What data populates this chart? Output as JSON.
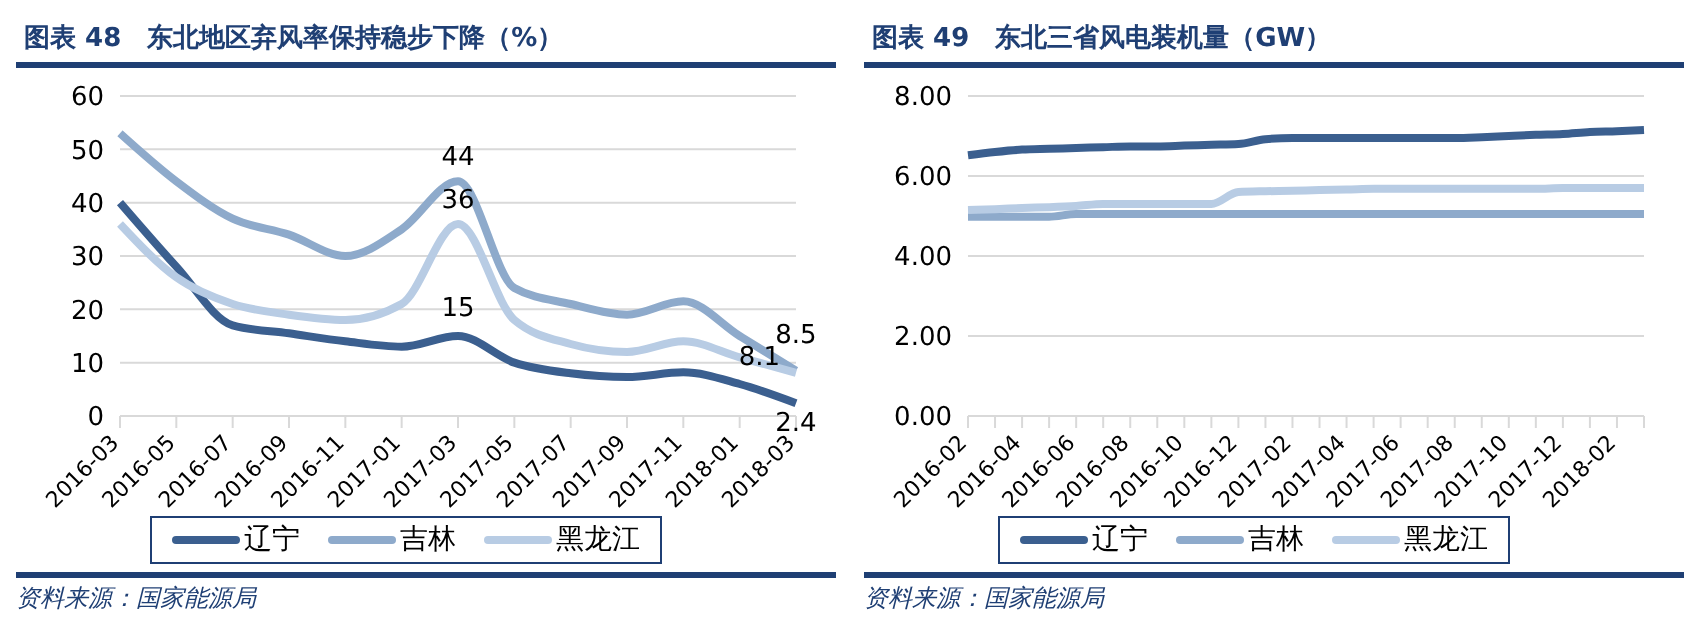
{
  "chart_data": [
    {
      "type": "line",
      "title": "图表 48　东北地区弃风率保持稳步下降（%）",
      "categories": [
        "2016-03",
        "2016-05",
        "2016-07",
        "2016-09",
        "2016-11",
        "2017-01",
        "2017-03",
        "2017-05",
        "2017-07",
        "2017-09",
        "2017-11",
        "2018-01",
        "2018-03"
      ],
      "series": [
        {
          "name": "辽宁",
          "color": "#3b5f8f",
          "values": [
            40,
            28,
            17,
            15.5,
            14,
            13,
            15,
            10,
            8,
            7.3,
            8.2,
            6,
            2.4
          ],
          "value_labels": [
            null,
            null,
            null,
            null,
            null,
            null,
            "15",
            null,
            null,
            null,
            null,
            null,
            "2.4"
          ]
        },
        {
          "name": "吉林",
          "color": "#8eaacb",
          "values": [
            53,
            44,
            37,
            34,
            30,
            35,
            44,
            24,
            21,
            19,
            21.5,
            15,
            8.5
          ],
          "value_labels": [
            null,
            null,
            null,
            null,
            null,
            null,
            "44",
            null,
            null,
            null,
            null,
            null,
            "8.5"
          ]
        },
        {
          "name": "黑龙江",
          "color": "#b8cce4",
          "values": [
            36,
            26,
            21,
            19,
            18,
            21,
            36,
            18,
            13.5,
            12,
            14,
            11,
            8.1
          ],
          "value_labels": [
            null,
            null,
            null,
            null,
            null,
            null,
            "36",
            null,
            null,
            null,
            null,
            null,
            "8.1"
          ]
        }
      ],
      "ylim": [
        0,
        60
      ],
      "yticks": [
        0,
        10,
        20,
        30,
        40,
        50,
        60
      ],
      "grid": "y",
      "legend": "bottom",
      "marker": "none",
      "line_style": "solid",
      "annotations": [
        "资料来源：国家能源局"
      ]
    },
    {
      "type": "line",
      "title": "图表 49　东北三省风电装机量（GW）",
      "categories": [
        "2016-02",
        null,
        "2016-04",
        null,
        "2016-06",
        null,
        "2016-08",
        null,
        "2016-10",
        null,
        "2016-12",
        null,
        "2017-02",
        null,
        "2017-04",
        null,
        "2017-06",
        null,
        "2017-08",
        null,
        "2017-10",
        null,
        "2017-12",
        null,
        "2018-02",
        null
      ],
      "series": [
        {
          "name": "辽宁",
          "color": "#3b5f8f",
          "values": [
            6.52,
            6.6,
            6.66,
            6.68,
            6.7,
            6.72,
            6.74,
            6.74,
            6.76,
            6.78,
            6.8,
            6.92,
            6.95,
            6.95,
            6.95,
            6.95,
            6.95,
            6.95,
            6.95,
            6.97,
            7,
            7.03,
            7.05,
            7.1,
            7.12,
            7.15
          ]
        },
        {
          "name": "吉林",
          "color": "#8eaacb",
          "values": [
            4.98,
            4.98,
            4.98,
            4.98,
            5.05,
            5.05,
            5.05,
            5.05,
            5.05,
            5.05,
            5.05,
            5.05,
            5.05,
            5.05,
            5.05,
            5.05,
            5.05,
            5.05,
            5.05,
            5.05,
            5.05,
            5.05,
            5.05,
            5.05,
            5.05,
            5.05
          ]
        },
        {
          "name": "黑龙江",
          "color": "#b8cce4",
          "values": [
            5.15,
            5.17,
            5.2,
            5.22,
            5.25,
            5.3,
            5.3,
            5.3,
            5.3,
            5.3,
            5.6,
            5.62,
            5.63,
            5.65,
            5.66,
            5.68,
            5.68,
            5.68,
            5.68,
            5.68,
            5.68,
            5.68,
            5.7,
            5.7,
            5.7,
            5.7
          ]
        }
      ],
      "ylim": [
        0,
        8
      ],
      "yticks": [
        {
          "value": 0,
          "label": "0.00"
        },
        {
          "value": 2,
          "label": "2.00"
        },
        {
          "value": 4,
          "label": "4.00"
        },
        {
          "value": 6,
          "label": "6.00"
        },
        {
          "value": 8,
          "label": "8.00"
        }
      ],
      "grid": "y",
      "legend": "bottom",
      "marker": "none",
      "line_style": "solid",
      "annotations": [
        "资料来源：国家能源局"
      ]
    }
  ]
}
